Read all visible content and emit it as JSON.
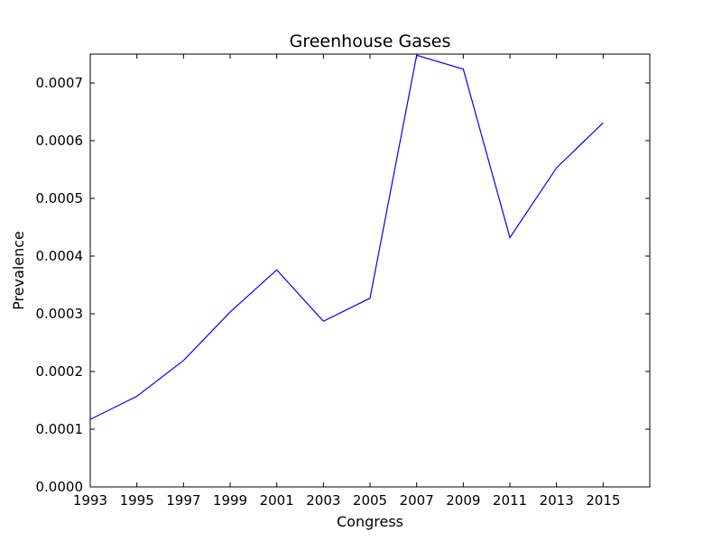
{
  "chart_data": {
    "type": "line",
    "title": "Greenhouse Gases",
    "xlabel": "Congress",
    "ylabel": "Prevalence",
    "x": [
      1993,
      1995,
      1997,
      1999,
      2001,
      2003,
      2005,
      2007,
      2009,
      2011,
      2013,
      2015
    ],
    "series": [
      {
        "values": [
          0.000117,
          0.000157,
          0.000219,
          0.000303,
          0.000376,
          0.000287,
          0.000327,
          0.000748,
          0.000724,
          0.000432,
          0.000553,
          0.000631
        ],
        "color": "#0000ff"
      }
    ],
    "xlim": [
      1993,
      2017
    ],
    "ylim": [
      0,
      0.00075
    ],
    "xticks": [
      "1993",
      "1995",
      "1997",
      "1999",
      "2001",
      "2003",
      "2005",
      "2007",
      "2009",
      "2011",
      "2013",
      "2015"
    ],
    "yticks": [
      "0.0000",
      "0.0001",
      "0.0002",
      "0.0003",
      "0.0004",
      "0.0005",
      "0.0006",
      "0.0007"
    ],
    "grid": false,
    "legend": false
  }
}
